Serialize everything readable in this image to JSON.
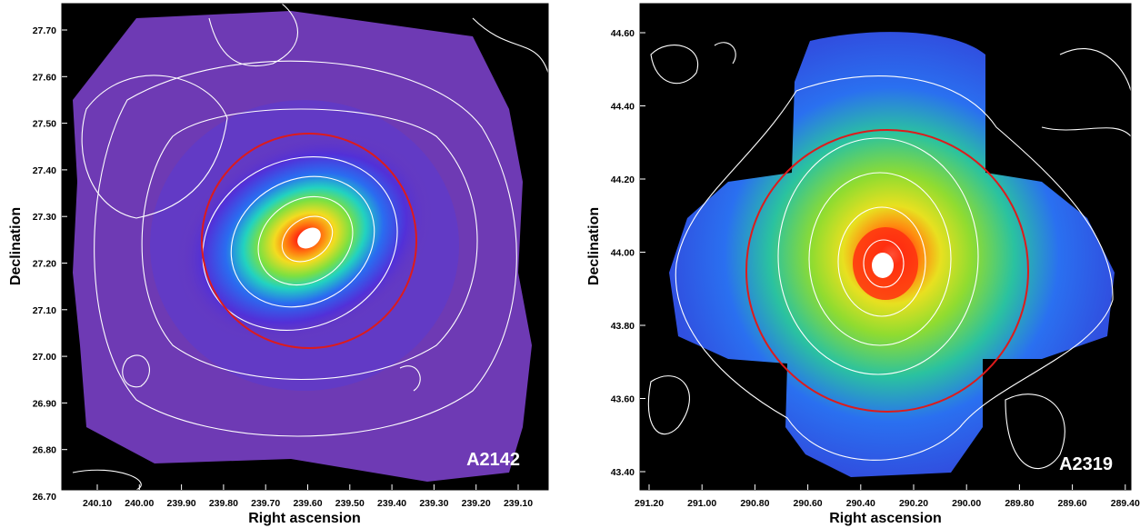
{
  "panels": [
    {
      "id": "left",
      "cluster_label": "A2142",
      "xlabel": "Right ascension",
      "ylabel": "Declination",
      "x_ticks": [
        "240.10",
        "240.00",
        "239.90",
        "239.80",
        "239.70",
        "239.60",
        "239.50",
        "239.40",
        "239.30",
        "239.20",
        "239.10"
      ],
      "y_ticks": [
        "27.70",
        "27.60",
        "27.50",
        "27.40",
        "27.30",
        "27.20",
        "27.10",
        "27.00",
        "26.90",
        "26.80",
        "26.70"
      ]
    },
    {
      "id": "right",
      "cluster_label": "A2319",
      "xlabel": "Right ascension",
      "ylabel": "Declination",
      "x_ticks": [
        "291.20",
        "291.00",
        "290.80",
        "290.60",
        "290.40",
        "290.20",
        "290.00",
        "289.80",
        "289.60",
        "289.40"
      ],
      "y_ticks": [
        "44.60",
        "44.40",
        "44.20",
        "44.00",
        "43.80",
        "43.60",
        "43.40"
      ]
    }
  ]
}
